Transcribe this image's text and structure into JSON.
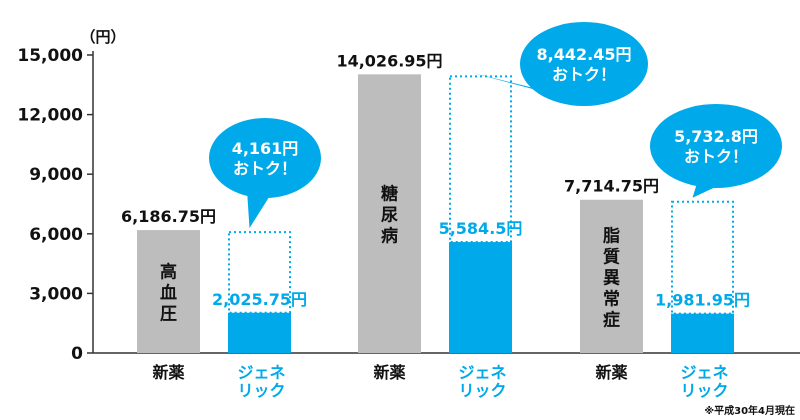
{
  "chart_data": {
    "type": "bar",
    "unit_label": "（円）",
    "ylim": [
      0,
      15000
    ],
    "yticks": [
      0,
      3000,
      6000,
      9000,
      12000,
      15000
    ],
    "ytick_labels": [
      "0",
      "3,000",
      "6,000",
      "9,000",
      "12,000",
      "15,000"
    ],
    "bar_labels": {
      "new": "新薬",
      "generic": "ジェネ\nリック"
    },
    "groups": [
      {
        "category": "高血圧",
        "new_value": 6186.75,
        "new_label": "6,186.75円",
        "generic_value": 2025.75,
        "generic_label": "2,025.75円",
        "savings_label": "4,161円\nおトク！"
      },
      {
        "category": "糖尿病",
        "new_value": 14026.95,
        "new_label": "14,026.95円",
        "generic_value": 5584.5,
        "generic_label": "5,584.5円",
        "savings_label": "8,442.45円\nおトク！"
      },
      {
        "category": "脂質異常症",
        "new_value": 7714.75,
        "new_label": "7,714.75円",
        "generic_value": 1981.95,
        "generic_label": "1,981.95円",
        "savings_label": "5,732.8円\nおトク！"
      }
    ],
    "footnote": "※平成30年4月現在",
    "colors": {
      "new": "#bdbdbd",
      "generic": "#00a9e9",
      "text": "#111111",
      "axis": "#333333"
    }
  }
}
